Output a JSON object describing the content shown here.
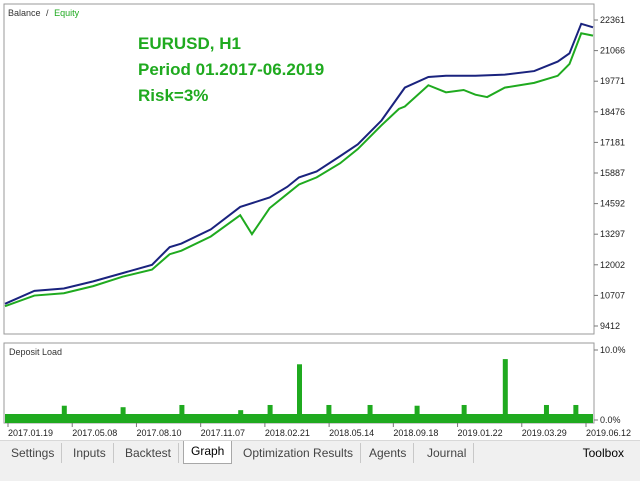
{
  "main_chart": {
    "legend": {
      "balance": "Balance",
      "separator": "/",
      "equity": "Equity"
    },
    "annotation": {
      "line1": "EURUSD, H1",
      "line2": "Period 01.2017-06.2019",
      "line3": "Risk=3%"
    },
    "colors": {
      "balance": "#1a237e",
      "equity": "#1faa1f",
      "annotation": "#1faa1f"
    }
  },
  "load_chart": {
    "title": "Deposit Load",
    "color": "#1faa1f"
  },
  "tabs": [
    {
      "label": "Settings",
      "active": false
    },
    {
      "label": "Inputs",
      "active": false
    },
    {
      "label": "Backtest",
      "active": false
    },
    {
      "label": "Graph",
      "active": true
    },
    {
      "label": "Optimization Results",
      "active": false
    },
    {
      "label": "Agents",
      "active": false
    },
    {
      "label": "Journal",
      "active": false
    }
  ],
  "toolbox_label": "Toolbox",
  "chart_data": [
    {
      "type": "line",
      "title": "",
      "legend": "top-left",
      "y_ticks": [
        22361,
        21066,
        19771,
        18476,
        17181,
        15887,
        14592,
        13297,
        12002,
        10707,
        9412
      ],
      "ylim": [
        9412,
        22361
      ],
      "x_ticks": [
        "2017.01.19",
        "2017.05.08",
        "2017.08.10",
        "2017.11.07",
        "2018.02.21",
        "2018.05.14",
        "2018.09.18",
        "2019.01.22",
        "2019.03.29",
        "2019.06.12"
      ],
      "series": [
        {
          "name": "Balance",
          "x": [
            0,
            0.05,
            0.1,
            0.15,
            0.2,
            0.25,
            0.28,
            0.3,
            0.35,
            0.4,
            0.45,
            0.48,
            0.5,
            0.53,
            0.57,
            0.6,
            0.64,
            0.68,
            0.72,
            0.75,
            0.8,
            0.85,
            0.9,
            0.94,
            0.96,
            0.98,
            1.0
          ],
          "values": [
            10350,
            10900,
            11000,
            11300,
            11650,
            12000,
            12750,
            12900,
            13500,
            14450,
            14850,
            15300,
            15700,
            15950,
            16600,
            17100,
            18100,
            19500,
            19950,
            20000,
            20000,
            20050,
            20200,
            20600,
            20950,
            22200,
            22050
          ]
        },
        {
          "name": "Equity",
          "x": [
            0,
            0.05,
            0.1,
            0.15,
            0.2,
            0.25,
            0.28,
            0.3,
            0.35,
            0.4,
            0.42,
            0.45,
            0.48,
            0.5,
            0.53,
            0.57,
            0.6,
            0.64,
            0.67,
            0.68,
            0.72,
            0.75,
            0.78,
            0.8,
            0.82,
            0.85,
            0.9,
            0.94,
            0.96,
            0.98,
            1.0
          ],
          "values": [
            10250,
            10700,
            10800,
            11100,
            11500,
            11800,
            12450,
            12600,
            13200,
            14100,
            13300,
            14400,
            15000,
            15400,
            15700,
            16300,
            16900,
            17900,
            18600,
            18700,
            19600,
            19300,
            19400,
            19200,
            19100,
            19500,
            19700,
            20000,
            20500,
            21800,
            21700
          ]
        }
      ]
    },
    {
      "type": "bar",
      "title": "Deposit Load",
      "y_ticks": [
        "10.0%",
        "0.0%"
      ],
      "ylim": [
        0,
        10
      ],
      "x": [
        0.1,
        0.2,
        0.3,
        0.4,
        0.45,
        0.5,
        0.55,
        0.62,
        0.7,
        0.78,
        0.85,
        0.92,
        0.97
      ],
      "values": [
        2.2,
        2.0,
        2.3,
        1.6,
        2.3,
        7.8,
        2.3,
        2.3,
        2.2,
        2.3,
        8.5,
        2.3,
        2.3
      ]
    }
  ]
}
